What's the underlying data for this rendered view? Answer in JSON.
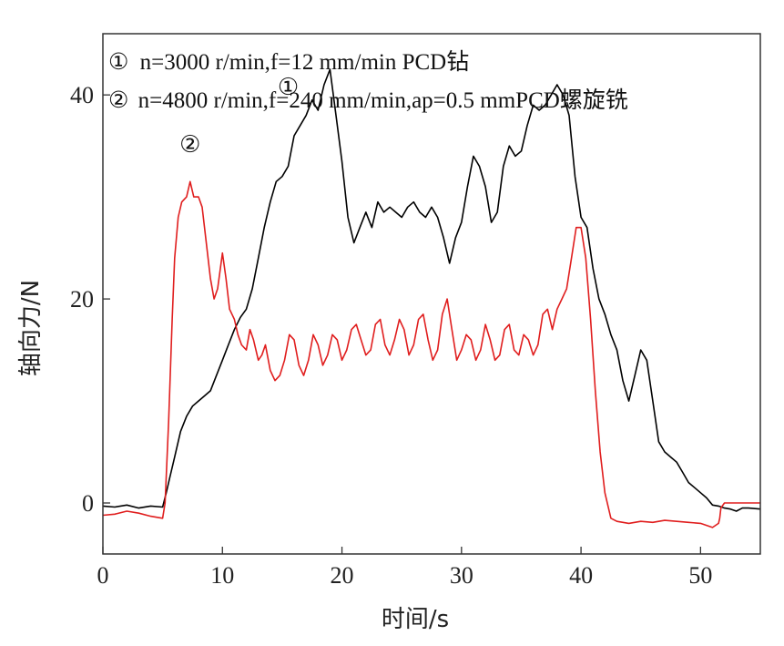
{
  "chart_data": {
    "type": "line",
    "xlabel": "时间/s",
    "ylabel": "轴向力/N",
    "xlim": [
      0,
      55
    ],
    "ylim": [
      -5,
      46
    ],
    "x_ticks": [
      0,
      10,
      20,
      30,
      40,
      50
    ],
    "y_ticks": [
      0,
      20,
      40
    ],
    "grid": false,
    "legend_position": "top",
    "legend": [
      {
        "marker": "①",
        "text": "n=3000 r/min,f=12 mm/min PCD钻"
      },
      {
        "marker": "②",
        "text": "n=4800 r/min,f=240 mm/min,ap=0.5 mmPCD螺旋铣"
      }
    ],
    "annotations": [
      {
        "text": "①",
        "x": 15.5,
        "y": 40
      },
      {
        "text": "②",
        "x": 7.3,
        "y": 34.4
      }
    ],
    "series": [
      {
        "name": "①",
        "color": "#000000",
        "x": [
          0,
          1,
          2,
          3,
          4,
          5,
          5.3,
          5.6,
          6,
          6.5,
          7,
          7.5,
          8,
          8.5,
          9,
          9.5,
          10,
          10.5,
          11,
          11.5,
          12,
          12.5,
          13,
          13.5,
          14,
          14.5,
          15,
          15.5,
          16,
          16.5,
          17,
          17.5,
          18,
          18.5,
          19,
          19.5,
          20,
          20.5,
          21,
          21.5,
          22,
          22.5,
          23,
          23.5,
          24,
          24.5,
          25,
          25.5,
          26,
          26.5,
          27,
          27.5,
          28,
          28.5,
          29,
          29.5,
          30,
          30.5,
          31,
          31.5,
          32,
          32.5,
          33,
          33.5,
          34,
          34.5,
          35,
          35.5,
          36,
          36.5,
          37,
          37.5,
          38,
          38.5,
          39,
          39.5,
          40,
          40.5,
          41,
          41.5,
          42,
          42.5,
          43,
          43.5,
          44,
          44.5,
          45,
          45.5,
          46,
          46.5,
          47,
          47.5,
          48,
          48.5,
          49,
          49.5,
          50,
          50.5,
          51,
          51.5,
          52,
          52.5,
          53,
          53.5,
          54,
          55
        ],
        "y": [
          -0.3,
          -0.4,
          -0.2,
          -0.5,
          -0.3,
          -0.4,
          1,
          2.5,
          4.5,
          7,
          8.5,
          9.5,
          10,
          10.5,
          11,
          12.5,
          14,
          15.5,
          17,
          18.2,
          19,
          21,
          24,
          27,
          29.5,
          31.5,
          32,
          33,
          36,
          37,
          38,
          39.5,
          38.5,
          41,
          42.5,
          38,
          33.5,
          28,
          25.5,
          27,
          28.5,
          27,
          29.5,
          28.5,
          29,
          28.5,
          28,
          29,
          29.5,
          28.5,
          28,
          29,
          28,
          26,
          23.5,
          26,
          27.5,
          31,
          34,
          33,
          31,
          27.5,
          28.5,
          33,
          35,
          34,
          34.5,
          37,
          39,
          38.5,
          39,
          40,
          41,
          40,
          38,
          32,
          28,
          27,
          23,
          20,
          18.5,
          16.5,
          15,
          12,
          10,
          12.5,
          15,
          14,
          10,
          6,
          5,
          4.5,
          4,
          3,
          2,
          1.5,
          1,
          0.5,
          -0.2,
          -0.3,
          -0.5,
          -0.6,
          -0.8,
          -0.5,
          -0.5,
          -0.6
        ]
      },
      {
        "name": "②",
        "color": "#e01e1e",
        "x": [
          0,
          1,
          2,
          3,
          4,
          5,
          5.2,
          5.5,
          5.8,
          6,
          6.3,
          6.6,
          7,
          7.3,
          7.6,
          8,
          8.3,
          8.6,
          9,
          9.3,
          9.6,
          10,
          10.3,
          10.6,
          11,
          11.3,
          11.6,
          12,
          12.3,
          12.6,
          13,
          13.3,
          13.6,
          14,
          14.4,
          14.8,
          15.2,
          15.6,
          16,
          16.4,
          16.8,
          17.2,
          17.6,
          18,
          18.4,
          18.8,
          19.2,
          19.6,
          20,
          20.4,
          20.8,
          21.2,
          21.6,
          22,
          22.4,
          22.8,
          23.2,
          23.6,
          24,
          24.4,
          24.8,
          25.2,
          25.6,
          26,
          26.4,
          26.8,
          27.2,
          27.6,
          28,
          28.4,
          28.8,
          29.2,
          29.6,
          30,
          30.4,
          30.8,
          31.2,
          31.6,
          32,
          32.4,
          32.8,
          33.2,
          33.6,
          34,
          34.4,
          34.8,
          35.2,
          35.6,
          36,
          36.4,
          36.8,
          37.2,
          37.6,
          38,
          38.4,
          38.8,
          39.2,
          39.6,
          40,
          40.4,
          40.8,
          41.2,
          41.6,
          42,
          42.5,
          43,
          44,
          45,
          46,
          47,
          48,
          49,
          50,
          51,
          51.5,
          51.6,
          51.7,
          52,
          53,
          54,
          55
        ],
        "y": [
          -1.2,
          -1.1,
          -0.8,
          -1,
          -1.3,
          -1.5,
          0,
          8,
          18,
          24,
          28,
          29.5,
          30,
          31.5,
          30,
          30,
          29,
          26,
          22,
          20,
          21,
          24.5,
          22,
          19,
          18,
          16.5,
          15.5,
          15,
          17,
          16,
          14,
          14.5,
          15.5,
          13,
          12,
          12.5,
          14,
          16.5,
          16,
          13.5,
          12.5,
          14,
          16.5,
          15.5,
          13.5,
          14.5,
          16.5,
          16,
          14,
          15,
          17,
          17.5,
          16,
          14.5,
          15,
          17.5,
          18,
          15.5,
          14.5,
          16,
          18,
          17,
          14.5,
          15.5,
          18,
          18.5,
          16,
          14,
          15,
          18.5,
          20,
          17,
          14,
          15,
          16.5,
          16,
          14,
          15,
          17.5,
          16,
          14,
          14.5,
          17,
          17.5,
          15,
          14.5,
          16.5,
          16,
          14.5,
          15.5,
          18.5,
          19,
          17,
          19,
          20,
          21,
          24,
          27,
          27,
          24,
          18,
          11,
          5,
          1,
          -1.5,
          -1.8,
          -2,
          -1.8,
          -1.9,
          -1.7,
          -1.8,
          -1.9,
          -2,
          -2.4,
          -2,
          -1.5,
          -0.5,
          0,
          0,
          0,
          0
        ]
      }
    ]
  }
}
